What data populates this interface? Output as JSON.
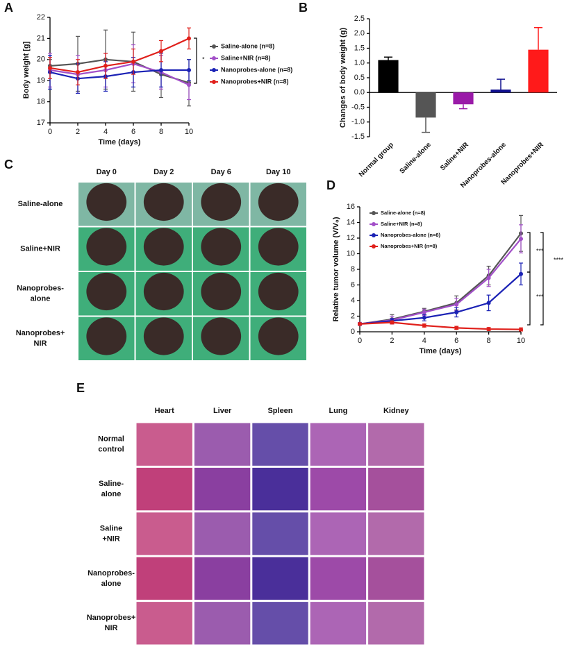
{
  "panel_labels": [
    "A",
    "B",
    "C",
    "D",
    "E"
  ],
  "chart_data": [
    {
      "type": "line",
      "x_label": "Time (days)",
      "y_label": "Body weight [g]",
      "x": [
        0,
        2,
        4,
        6,
        8,
        10
      ],
      "xlim": [
        0,
        10
      ],
      "xticks": [
        0,
        2,
        4,
        6,
        8,
        10
      ],
      "ylim": [
        17,
        22
      ],
      "yticks": [
        17,
        18,
        19,
        20,
        21,
        22
      ],
      "legend": "right",
      "series": [
        {
          "name": "Saline-alone (n=8)",
          "color": "#555555",
          "values": [
            19.7,
            19.8,
            20.0,
            19.9,
            19.3,
            18.9
          ],
          "errors": [
            0.3,
            1.3,
            1.4,
            1.4,
            1.1,
            1.1
          ]
        },
        {
          "name": "Saline+NIR (n=8)",
          "color": "#a24fc8",
          "values": [
            19.5,
            19.3,
            19.5,
            19.8,
            19.4,
            18.8
          ],
          "errors": [
            0.8,
            0.9,
            0.8,
            0.9,
            0.8,
            0.7
          ]
        },
        {
          "name": "Nanoprobes-alone (n=8)",
          "color": "#1b22b5",
          "values": [
            19.4,
            19.1,
            19.2,
            19.4,
            19.5,
            19.5
          ],
          "errors": [
            0.8,
            0.7,
            0.7,
            0.7,
            0.8,
            0.5
          ]
        },
        {
          "name": "Nanoprobes+NIR (n=8)",
          "color": "#e0201b",
          "values": [
            19.6,
            19.4,
            19.7,
            19.9,
            20.4,
            21.0
          ],
          "errors": [
            0.5,
            0.6,
            0.6,
            0.6,
            0.5,
            0.5
          ]
        }
      ],
      "annotations": [
        "*"
      ]
    },
    {
      "type": "bar",
      "y_label": "Changes of body weight (g)",
      "categories": [
        "Normal group",
        "Saline-alone",
        "Saline+NIR",
        "Nanoprobes-alone",
        "Nanoprobes+NIR"
      ],
      "values": [
        1.1,
        -0.85,
        -0.4,
        0.1,
        1.45
      ],
      "errors": [
        0.1,
        0.5,
        0.15,
        0.35,
        0.75
      ],
      "colors": [
        "#000000",
        "#555555",
        "#9a1aa8",
        "#10108f",
        "#ff1a1a"
      ],
      "ylim": [
        -1.5,
        2.5
      ],
      "yticks": [
        -1.5,
        {
          "value": -1,
          "label": "-1.0"
        },
        -0.5,
        {
          "value": 0,
          "label": "0.0"
        },
        0.5,
        {
          "value": 1,
          "label": "1.0"
        },
        1.5,
        {
          "value": 2,
          "label": "2.0"
        },
        2.5
      ]
    },
    {
      "type": "line",
      "x_label": "Time (days)",
      "y_label": "Relative tumor volume (V/V₀)",
      "x": [
        0,
        2,
        4,
        6,
        8,
        10
      ],
      "xlim": [
        0,
        10
      ],
      "xticks": [
        0,
        2,
        4,
        6,
        8,
        10
      ],
      "ylim": [
        0,
        16
      ],
      "yticks": [
        0,
        2,
        4,
        6,
        8,
        10,
        12,
        14,
        16
      ],
      "legend": "upper left",
      "series": [
        {
          "name": "Saline-alone (n=8)",
          "color": "#555555",
          "values": [
            1,
            1.6,
            2.6,
            3.7,
            7.2,
            12.6
          ],
          "errors": [
            0.2,
            0.6,
            0.4,
            0.9,
            1.2,
            2.3
          ]
        },
        {
          "name": "Saline+NIR (n=8)",
          "color": "#a24fc8",
          "values": [
            1,
            1.5,
            2.5,
            3.5,
            6.9,
            11.9
          ],
          "errors": [
            0.2,
            0.5,
            0.4,
            0.8,
            1.1,
            1.8
          ]
        },
        {
          "name": "Nanoprobes-alone (n=8)",
          "color": "#1b22b5",
          "values": [
            1,
            1.4,
            1.8,
            2.5,
            3.7,
            7.4
          ],
          "errors": [
            0.1,
            0.3,
            0.4,
            0.6,
            1.0,
            1.4
          ]
        },
        {
          "name": "Nanoprobes+NIR (n=8)",
          "color": "#e0201b",
          "values": [
            1,
            1.2,
            0.8,
            0.5,
            0.35,
            0.3
          ],
          "errors": [
            0.1,
            0.2,
            0.2,
            0.2,
            0.2,
            0.2
          ]
        }
      ],
      "annotations": [
        "***",
        "***",
        "****"
      ]
    }
  ],
  "photo_grid": {
    "columns": [
      "Day 0",
      "Day 2",
      "Day 6",
      "Day 10"
    ],
    "rows": [
      [
        "Saline-alone"
      ],
      [
        "Saline+NIR"
      ],
      [
        "Nanoprobes-",
        "alone"
      ],
      [
        "Nanoprobes+",
        "NIR"
      ]
    ]
  },
  "histology_grid": {
    "columns": [
      "Heart",
      "Liver",
      "Spleen",
      "Lung",
      "Kidney"
    ],
    "rows": [
      [
        "Normal",
        "control"
      ],
      [
        "Saline-",
        "alone"
      ],
      [
        "Saline",
        "+NIR"
      ],
      [
        "Nanoprobes-",
        "alone"
      ],
      [
        "Nanoprobes+",
        "NIR"
      ]
    ]
  }
}
